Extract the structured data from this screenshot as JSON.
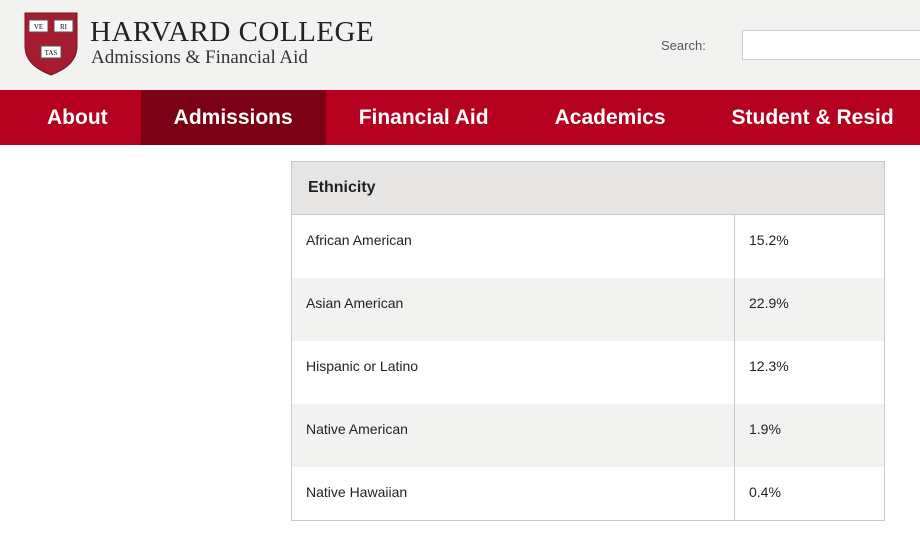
{
  "header": {
    "title": "HARVARD COLLEGE",
    "subtitle": "Admissions & Financial Aid",
    "shield_text": [
      "VE",
      "RI",
      "TAS"
    ],
    "search_label": "Search:",
    "search_value": ""
  },
  "nav": {
    "items": [
      {
        "label": "About"
      },
      {
        "label": "Admissions",
        "active": true
      },
      {
        "label": "Financial Aid"
      },
      {
        "label": "Academics"
      },
      {
        "label": "Student & Resid"
      }
    ]
  },
  "colors": {
    "brand": "#b5001f",
    "active": "#7c0013"
  },
  "table": {
    "header": "Ethnicity",
    "rows": [
      {
        "label": "African American",
        "value": "15.2%"
      },
      {
        "label": "Asian American",
        "value": "22.9%"
      },
      {
        "label": "Hispanic or Latino",
        "value": "12.3%"
      },
      {
        "label": "Native American",
        "value": "1.9%"
      },
      {
        "label": "Native Hawaiian",
        "value": "0.4%"
      }
    ]
  }
}
